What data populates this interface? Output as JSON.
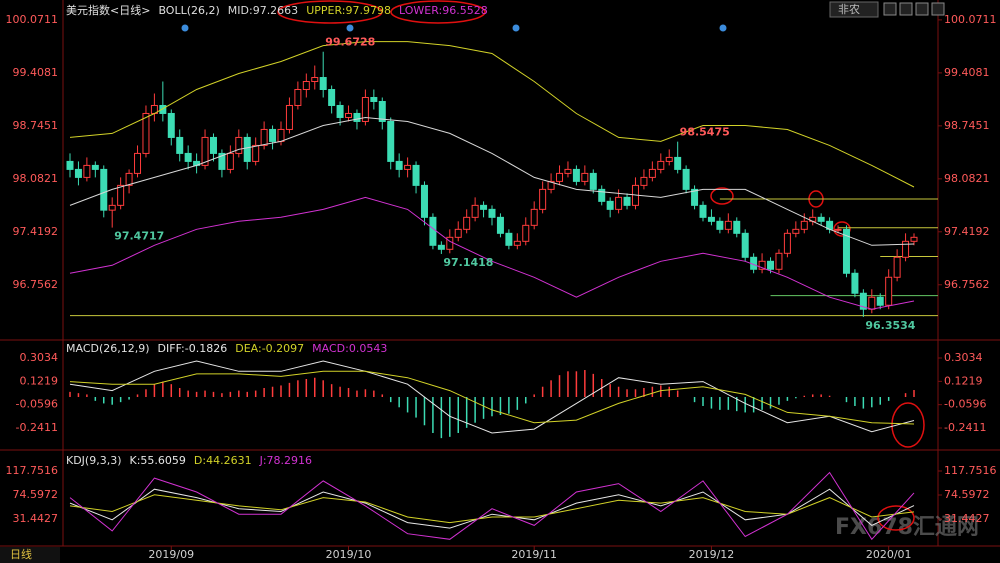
{
  "chart_data": [
    {
      "type": "candlestick",
      "title": "美元指数<日线>",
      "subtitle": "BOLL(26,2)",
      "up_color": "#ff3c3c",
      "down_color": "#3cdcb4",
      "ylim": [
        96.09,
        100.22
      ],
      "yticks": [
        100.0711,
        99.4081,
        98.7451,
        98.0821,
        97.4192,
        96.7562
      ],
      "xlim": [
        0,
        100
      ],
      "xticks": [
        {
          "value": 12,
          "label": "2019/09"
        },
        {
          "value": 33,
          "label": "2019/10"
        },
        {
          "value": 55,
          "label": "2019/11"
        },
        {
          "value": 76,
          "label": "2019/12"
        },
        {
          "value": 97,
          "label": "2020/01"
        }
      ],
      "candles": [
        [
          98.3,
          98.4,
          98.1,
          98.2
        ],
        [
          98.2,
          98.3,
          98.0,
          98.1
        ],
        [
          98.1,
          98.35,
          98.05,
          98.25
        ],
        [
          98.25,
          98.3,
          98.1,
          98.2
        ],
        [
          98.2,
          98.25,
          97.6,
          97.69
        ],
        [
          97.69,
          97.85,
          97.4717,
          97.75
        ],
        [
          97.75,
          98.1,
          97.7,
          98.0
        ],
        [
          98.0,
          98.2,
          97.9,
          98.15
        ],
        [
          98.15,
          98.5,
          98.1,
          98.4
        ],
        [
          98.4,
          99.0,
          98.35,
          98.9
        ],
        [
          98.9,
          99.15,
          98.8,
          99.0
        ],
        [
          99.0,
          99.3,
          98.8,
          98.9
        ],
        [
          98.9,
          98.95,
          98.5,
          98.6
        ],
        [
          98.6,
          98.7,
          98.3,
          98.4
        ],
        [
          98.4,
          98.5,
          98.2,
          98.3
        ],
        [
          98.3,
          98.4,
          98.15,
          98.25
        ],
        [
          98.25,
          98.7,
          98.2,
          98.6
        ],
        [
          98.6,
          98.65,
          98.3,
          98.4
        ],
        [
          98.4,
          98.45,
          98.1,
          98.2
        ],
        [
          98.2,
          98.5,
          98.15,
          98.4
        ],
        [
          98.4,
          98.7,
          98.35,
          98.6
        ],
        [
          98.6,
          98.65,
          98.2,
          98.3
        ],
        [
          98.3,
          98.6,
          98.25,
          98.5
        ],
        [
          98.5,
          98.8,
          98.45,
          98.7
        ],
        [
          98.7,
          98.75,
          98.45,
          98.55
        ],
        [
          98.55,
          98.8,
          98.5,
          98.7
        ],
        [
          98.7,
          99.1,
          98.65,
          99.0
        ],
        [
          99.0,
          99.3,
          98.95,
          99.2
        ],
        [
          99.2,
          99.4,
          99.1,
          99.3
        ],
        [
          99.3,
          99.5,
          99.2,
          99.35
        ],
        [
          99.35,
          99.6728,
          99.1,
          99.2
        ],
        [
          99.2,
          99.25,
          98.9,
          99.0
        ],
        [
          99.0,
          99.05,
          98.75,
          98.85
        ],
        [
          98.85,
          99.0,
          98.8,
          98.9
        ],
        [
          98.9,
          98.95,
          98.7,
          98.8
        ],
        [
          98.8,
          99.2,
          98.75,
          99.1
        ],
        [
          99.1,
          99.2,
          98.95,
          99.05
        ],
        [
          99.05,
          99.1,
          98.7,
          98.8
        ],
        [
          98.8,
          98.85,
          98.2,
          98.3
        ],
        [
          98.3,
          98.4,
          98.1,
          98.2
        ],
        [
          98.2,
          98.35,
          98.1,
          98.25
        ],
        [
          98.25,
          98.3,
          97.9,
          98.0
        ],
        [
          98.0,
          98.05,
          97.5,
          97.6
        ],
        [
          97.6,
          97.65,
          97.2,
          97.25
        ],
        [
          97.25,
          97.3,
          97.1418,
          97.2
        ],
        [
          97.2,
          97.45,
          97.15,
          97.35
        ],
        [
          97.35,
          97.55,
          97.3,
          97.45
        ],
        [
          97.45,
          97.7,
          97.4,
          97.6
        ],
        [
          97.6,
          97.85,
          97.55,
          97.75
        ],
        [
          97.75,
          97.8,
          97.6,
          97.7
        ],
        [
          97.7,
          97.75,
          97.5,
          97.6
        ],
        [
          97.6,
          97.65,
          97.35,
          97.4
        ],
        [
          97.4,
          97.45,
          97.2,
          97.25
        ],
        [
          97.25,
          97.4,
          97.2,
          97.3
        ],
        [
          97.3,
          97.6,
          97.25,
          97.5
        ],
        [
          97.5,
          97.8,
          97.45,
          97.7
        ],
        [
          97.7,
          98.05,
          97.65,
          97.95
        ],
        [
          97.95,
          98.15,
          97.9,
          98.05
        ],
        [
          98.05,
          98.25,
          98.0,
          98.15
        ],
        [
          98.15,
          98.3,
          98.1,
          98.2
        ],
        [
          98.2,
          98.25,
          98.0,
          98.05
        ],
        [
          98.05,
          98.25,
          98.0,
          98.15
        ],
        [
          98.15,
          98.2,
          97.9,
          97.95
        ],
        [
          97.95,
          98.0,
          97.75,
          97.8
        ],
        [
          97.8,
          97.85,
          97.6,
          97.7
        ],
        [
          97.7,
          97.95,
          97.65,
          97.85
        ],
        [
          97.85,
          97.9,
          97.7,
          97.75
        ],
        [
          97.75,
          98.1,
          97.7,
          98.0
        ],
        [
          98.0,
          98.2,
          97.95,
          98.1
        ],
        [
          98.1,
          98.3,
          98.05,
          98.2
        ],
        [
          98.2,
          98.4,
          98.15,
          98.3
        ],
        [
          98.3,
          98.45,
          98.25,
          98.35
        ],
        [
          98.35,
          98.5475,
          98.15,
          98.2
        ],
        [
          98.2,
          98.25,
          97.9,
          97.95
        ],
        [
          97.95,
          98.0,
          97.7,
          97.75
        ],
        [
          97.75,
          97.8,
          97.55,
          97.6
        ],
        [
          97.6,
          97.7,
          97.5,
          97.55
        ],
        [
          97.55,
          97.6,
          97.4,
          97.45
        ],
        [
          97.45,
          97.65,
          97.4,
          97.55
        ],
        [
          97.55,
          97.6,
          97.35,
          97.4
        ],
        [
          97.4,
          97.45,
          97.05,
          97.1
        ],
        [
          97.1,
          97.15,
          96.9,
          96.95
        ],
        [
          96.95,
          97.15,
          96.9,
          97.05
        ],
        [
          97.05,
          97.1,
          96.9,
          96.95
        ],
        [
          96.95,
          97.2,
          96.9,
          97.15
        ],
        [
          97.15,
          97.45,
          97.1,
          97.4
        ],
        [
          97.4,
          97.55,
          97.35,
          97.45
        ],
        [
          97.45,
          97.65,
          97.4,
          97.55
        ],
        [
          97.55,
          97.7,
          97.5,
          97.6
        ],
        [
          97.6,
          97.65,
          97.5,
          97.55
        ],
        [
          97.55,
          97.6,
          97.4,
          97.45
        ],
        [
          97.45,
          97.5,
          97.4,
          97.45
        ],
        [
          97.45,
          97.5,
          96.85,
          96.9
        ],
        [
          96.9,
          96.95,
          96.6,
          96.65
        ],
        [
          96.65,
          96.7,
          96.3534,
          96.45
        ],
        [
          96.45,
          96.7,
          96.4,
          96.6
        ],
        [
          96.6,
          96.65,
          96.45,
          96.5
        ],
        [
          96.5,
          96.95,
          96.45,
          96.85
        ],
        [
          96.85,
          97.2,
          96.8,
          97.1
        ],
        [
          97.1,
          97.4,
          97.05,
          97.3
        ],
        [
          97.3,
          97.4,
          97.25,
          97.35
        ]
      ],
      "x": [
        0,
        5,
        10,
        15,
        20,
        25,
        30,
        35,
        40,
        45,
        50,
        55,
        60,
        65,
        70,
        75,
        80,
        85,
        90,
        95,
        100
      ],
      "series": [
        {
          "name": "MID:97.2663",
          "color": "#d8d8d8",
          "values": [
            97.75,
            97.95,
            98.1,
            98.25,
            98.45,
            98.55,
            98.75,
            98.85,
            98.8,
            98.65,
            98.4,
            98.1,
            97.95,
            97.9,
            97.85,
            97.95,
            97.95,
            97.7,
            97.45,
            97.25,
            97.2663
          ]
        },
        {
          "name": "UPPER:97.9798",
          "color": "#d2d228",
          "values": [
            98.6,
            98.65,
            98.9,
            99.2,
            99.4,
            99.55,
            99.75,
            99.8,
            99.8,
            99.75,
            99.65,
            99.3,
            98.9,
            98.6,
            98.55,
            98.75,
            98.75,
            98.7,
            98.5,
            98.25,
            97.9798
          ]
        },
        {
          "name": "LOWER:96.5528",
          "color": "#d232d2",
          "values": [
            96.9,
            97.0,
            97.25,
            97.45,
            97.55,
            97.6,
            97.7,
            97.85,
            97.7,
            97.3,
            97.05,
            96.85,
            96.6,
            96.85,
            97.05,
            97.15,
            97.05,
            96.85,
            96.6,
            96.45,
            96.5528
          ]
        }
      ],
      "levels": [
        {
          "value": 96.37,
          "from": 0,
          "color": "#c8c83c"
        },
        {
          "value": 96.62,
          "from": 83,
          "color": "#64c864"
        },
        {
          "value": 97.11,
          "from": 96,
          "color": "#c8c83c"
        },
        {
          "value": 97.47,
          "from": 91,
          "color": "#c8c83c"
        },
        {
          "value": 97.83,
          "from": 77,
          "color": "#c8c83c"
        }
      ],
      "annotations": [
        {
          "value": 99.6728,
          "x": 30,
          "color": "#ff5a5a",
          "position": "above"
        },
        {
          "value": 97.4717,
          "x": 5,
          "color": "#50c8a0",
          "position": "below"
        },
        {
          "value": 97.1418,
          "x": 44,
          "color": "#50c8a0",
          "position": "below"
        },
        {
          "value": 98.5475,
          "x": 72,
          "color": "#ff5a5a",
          "position": "above"
        },
        {
          "value": 96.3534,
          "x": 94,
          "color": "#50c8a0",
          "position": "below"
        }
      ]
    },
    {
      "type": "macd",
      "title": "MACD(26,12,9)",
      "ylim": [
        -0.389,
        0.428
      ],
      "yticks": [
        0.3034,
        0.1219,
        -0.0596,
        -0.2411
      ],
      "x": [
        0,
        5,
        10,
        15,
        20,
        25,
        30,
        35,
        40,
        45,
        50,
        55,
        60,
        65,
        70,
        75,
        80,
        85,
        90,
        95,
        100
      ],
      "series": [
        {
          "name": "DIFF:-0.1826",
          "color": "#e6e6e6",
          "values": [
            0.1,
            0.05,
            0.2,
            0.28,
            0.2,
            0.2,
            0.28,
            0.2,
            0.1,
            -0.15,
            -0.28,
            -0.25,
            -0.05,
            0.15,
            0.1,
            0.12,
            -0.05,
            -0.2,
            -0.15,
            -0.27,
            -0.1826
          ]
        },
        {
          "name": "DEA:-0.2097",
          "color": "#d2d228",
          "values": [
            0.12,
            0.1,
            0.1,
            0.18,
            0.18,
            0.16,
            0.2,
            0.2,
            0.15,
            0.05,
            -0.1,
            -0.2,
            -0.18,
            -0.05,
            0.05,
            0.08,
            0.02,
            -0.12,
            -0.15,
            -0.2,
            -0.2097
          ]
        }
      ],
      "histogram": {
        "name": "MACD:0.0543",
        "color": "#d232d2",
        "up_color": "#ff3c3c",
        "down_color": "#3cdcb4",
        "values": [
          0.04,
          0.03,
          0.02,
          -0.03,
          -0.05,
          -0.06,
          -0.04,
          -0.02,
          0.02,
          0.06,
          0.1,
          0.12,
          0.1,
          0.07,
          0.05,
          0.04,
          0.05,
          0.04,
          0.03,
          0.04,
          0.05,
          0.04,
          0.05,
          0.07,
          0.08,
          0.09,
          0.11,
          0.13,
          0.14,
          0.15,
          0.13,
          0.1,
          0.08,
          0.07,
          0.05,
          0.06,
          0.05,
          0.02,
          -0.04,
          -0.08,
          -0.12,
          -0.16,
          -0.22,
          -0.28,
          -0.32,
          -0.31,
          -0.28,
          -0.24,
          -0.2,
          -0.17,
          -0.15,
          -0.14,
          -0.13,
          -0.1,
          -0.05,
          0.02,
          0.08,
          0.13,
          0.17,
          0.2,
          0.2,
          0.21,
          0.18,
          0.14,
          0.1,
          0.08,
          0.06,
          0.06,
          0.07,
          0.08,
          0.09,
          0.08,
          0.05,
          0.0,
          -0.04,
          -0.07,
          -0.09,
          -0.1,
          -0.1,
          -0.11,
          -0.12,
          -0.12,
          -0.1,
          -0.09,
          -0.06,
          -0.03,
          -0.01,
          0.01,
          0.02,
          0.02,
          0.01,
          0.0,
          -0.04,
          -0.07,
          -0.09,
          -0.08,
          -0.06,
          -0.03,
          0.0,
          0.03,
          0.0543
        ]
      }
    },
    {
      "type": "line",
      "title": "KDJ(9,3,3)",
      "ylim": [
        -15.3,
        150.1
      ],
      "yticks": [
        117.7516,
        74.5972,
        31.4427
      ],
      "x": [
        0,
        5,
        10,
        15,
        20,
        25,
        30,
        35,
        40,
        45,
        50,
        55,
        60,
        65,
        70,
        75,
        80,
        85,
        90,
        95,
        100
      ],
      "series": [
        {
          "name": "K:55.6059",
          "color": "#e6e6e6",
          "values": [
            60,
            30,
            85,
            70,
            50,
            45,
            80,
            60,
            25,
            15,
            40,
            30,
            60,
            75,
            55,
            80,
            30,
            40,
            85,
            20,
            55.6059
          ]
        },
        {
          "name": "D:44.2631",
          "color": "#d2d228",
          "values": [
            55,
            45,
            75,
            65,
            55,
            48,
            70,
            62,
            35,
            25,
            35,
            35,
            50,
            65,
            60,
            70,
            45,
            40,
            70,
            35,
            44.2631
          ]
        },
        {
          "name": "J:78.2916",
          "color": "#d232d2",
          "values": [
            70,
            10,
            105,
            80,
            40,
            40,
            100,
            55,
            5,
            -5,
            50,
            20,
            80,
            95,
            45,
            100,
            0,
            40,
            115,
            -5,
            78.2916
          ]
        }
      ]
    }
  ],
  "ui": {
    "period": "日线",
    "dropdown": "非农",
    "watermark": "FX678汇通网"
  }
}
